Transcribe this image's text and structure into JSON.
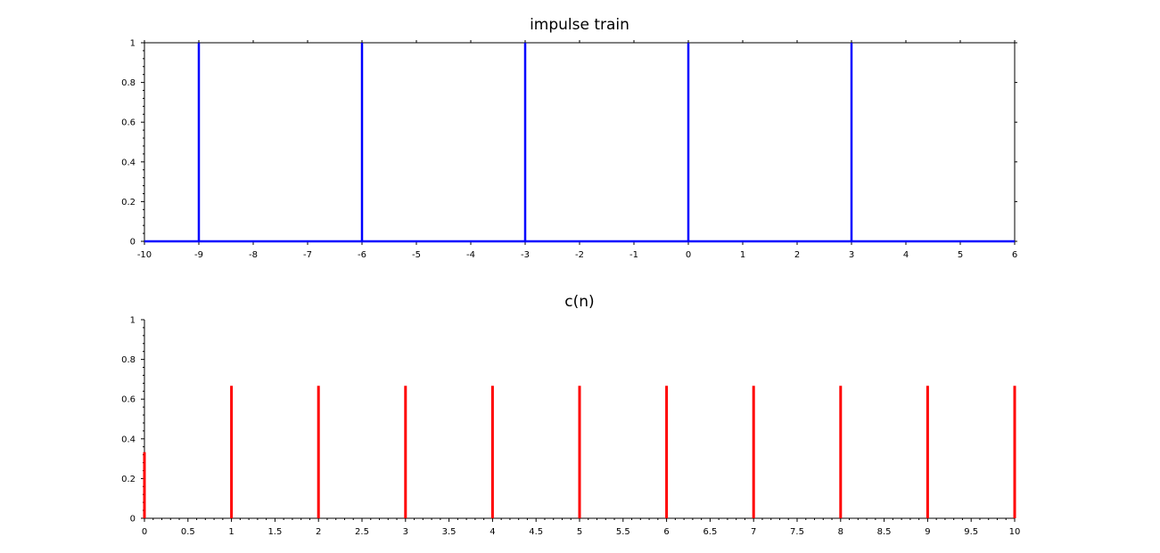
{
  "chart_data": [
    {
      "type": "bar",
      "title": "impulse train",
      "xlabel": "",
      "ylabel": "",
      "xlim": [
        -10,
        6
      ],
      "ylim": [
        0,
        1
      ],
      "xticks": [
        -10,
        -9,
        -8,
        -7,
        -6,
        -5,
        -4,
        -3,
        -2,
        -1,
        0,
        1,
        2,
        3,
        4,
        5,
        6
      ],
      "xtick_labels": [
        "-10",
        "-9",
        "-8",
        "-7",
        "-6",
        "-5",
        "-4",
        "-3",
        "-2",
        "-1",
        "0",
        "1",
        "2",
        "3",
        "4",
        "5",
        "6"
      ],
      "yticks": [
        0,
        0.2,
        0.4,
        0.6,
        0.8,
        1
      ],
      "ytick_labels": [
        "0",
        "0.2",
        "0.4",
        "0.6",
        "0.8",
        "1"
      ],
      "grid": false,
      "series": [
        {
          "color": "#0000ff",
          "style": "stem-line",
          "x": [
            -9,
            -6,
            -3,
            0,
            3
          ],
          "values": [
            1,
            1,
            1,
            1,
            1
          ]
        }
      ]
    },
    {
      "type": "bar",
      "title": "c(n)",
      "xlabel": "",
      "ylabel": "",
      "xlim": [
        0,
        10
      ],
      "ylim": [
        0,
        1
      ],
      "xticks": [
        0,
        0.5,
        1,
        1.5,
        2,
        2.5,
        3,
        3.5,
        4,
        4.5,
        5,
        5.5,
        6,
        6.5,
        7,
        7.5,
        8,
        8.5,
        9,
        9.5,
        10
      ],
      "xtick_labels": [
        "0",
        "0.5",
        "1",
        "1.5",
        "2",
        "2.5",
        "3",
        "3.5",
        "4",
        "4.5",
        "5",
        "5.5",
        "6",
        "6.5",
        "7",
        "7.5",
        "8",
        "8.5",
        "9",
        "9.5",
        "10"
      ],
      "yticks": [
        0,
        0.2,
        0.4,
        0.6,
        0.8,
        1
      ],
      "ytick_labels": [
        "0",
        "0.2",
        "0.4",
        "0.6",
        "0.8",
        "1"
      ],
      "grid": false,
      "series": [
        {
          "color": "#ff0000",
          "style": "stem",
          "x": [
            0,
            1,
            2,
            3,
            4,
            5,
            6,
            7,
            8,
            9,
            10
          ],
          "values": [
            0.333,
            0.667,
            0.667,
            0.667,
            0.667,
            0.667,
            0.667,
            0.667,
            0.667,
            0.667,
            0.667
          ]
        }
      ]
    }
  ]
}
